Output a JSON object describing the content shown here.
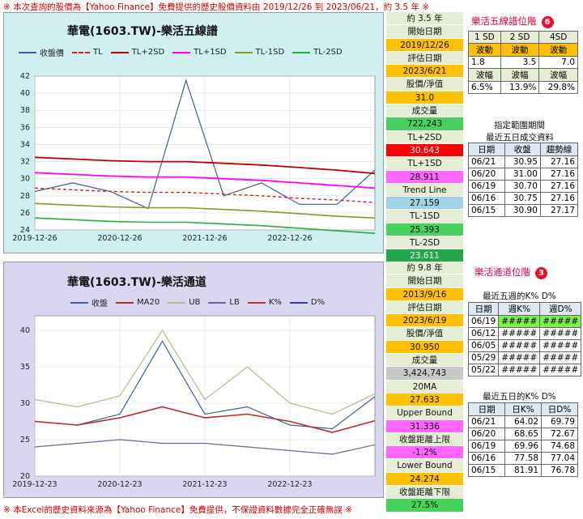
{
  "top_note": "※ 本次查詢的股價為【Yahoo Finance】免費提供的歷史股價資料由 2019/12/26 到 2023/06/21，約 3.5 年 ※",
  "bottom_note": "※ 本Excel的歷史資料來源為【Yahoo Finance】免費提供，不保證資料數據完全正確無誤 ※",
  "colors": {
    "close": "#3a5fa0",
    "tl": "#d42020",
    "tl_plus2": "#c00000",
    "tl_plus1": "#ff00ff",
    "tl_minus1": "#8a9a20",
    "tl_minus2": "#20b040",
    "ma20": "#c0282a",
    "ub": "#b8b890",
    "lb": "#7060a0",
    "k": "#c03030",
    "d": "#3040a0"
  },
  "chart1": {
    "title": "華電(1603.TW)-樂活五線譜",
    "legend": [
      "收盤價",
      "TL",
      "TL+2SD",
      "TL+1SD",
      "TL-1SD",
      "TL-2SD"
    ],
    "yticks": [
      "42",
      "40",
      "38",
      "36",
      "34",
      "32",
      "30",
      "28",
      "26",
      "24"
    ],
    "xticks": [
      "2019-12-26",
      "2020-12-26",
      "2021-12-26",
      "2022-12-26"
    ]
  },
  "chart2": {
    "title": "華電(1603.TW)-樂活通道",
    "legend": [
      "收盤",
      "MA20",
      "UB",
      "LB",
      "K%",
      "D%"
    ],
    "yticks": [
      "40",
      "35",
      "30",
      "25",
      "20"
    ],
    "xticks": [
      "2019-12-23",
      "2020-12-23",
      "2021-12-23",
      "2022-12-23"
    ]
  },
  "info1": [
    {
      "text": "約 3.5 年",
      "style": "hdr"
    },
    {
      "text": "開始日期",
      "style": "hdr"
    },
    {
      "text": "2019/12/26",
      "style": "yellow"
    },
    {
      "text": "評估日期",
      "style": "hdr"
    },
    {
      "text": "2023/6/21",
      "style": "yellow"
    },
    {
      "text": "股價/淨值",
      "style": "hdr"
    },
    {
      "text": "31.0",
      "style": "yellow"
    },
    {
      "text": "成交量",
      "style": "hdr"
    },
    {
      "text": "722,243",
      "style": "lgreen"
    },
    {
      "text": "TL+2SD",
      "style": "hdr"
    },
    {
      "text": "30.643",
      "style": "red"
    },
    {
      "text": "TL+1SD",
      "style": "hdr"
    },
    {
      "text": "28.911",
      "style": "pink"
    },
    {
      "text": "Trend Line",
      "style": "hdr"
    },
    {
      "text": "27.159",
      "style": "lblue"
    },
    {
      "text": "TL-1SD",
      "style": "hdr"
    },
    {
      "text": "25.393",
      "style": "lgreen"
    },
    {
      "text": "TL-2SD",
      "style": "hdr"
    },
    {
      "text": "23.611",
      "style": "green"
    }
  ],
  "info2": [
    {
      "text": "約 9.8 年",
      "style": "hdr"
    },
    {
      "text": "開始日期",
      "style": "hdr"
    },
    {
      "text": "2013/9/16",
      "style": "yellow"
    },
    {
      "text": "評估日期",
      "style": "hdr"
    },
    {
      "text": "2023/6/19",
      "style": "yellow"
    },
    {
      "text": "股價/淨值",
      "style": "hdr"
    },
    {
      "text": "30.950",
      "style": "yellow"
    },
    {
      "text": "成交量",
      "style": "hdr"
    },
    {
      "text": "3,424,743",
      "style": "gray"
    },
    {
      "text": "20MA",
      "style": "hdr"
    },
    {
      "text": "27.633",
      "style": "yellow"
    },
    {
      "text": "Upper Bound",
      "style": "hdr"
    },
    {
      "text": "31.336",
      "style": "pink"
    },
    {
      "text": "收盤距離上限",
      "style": "hdr"
    },
    {
      "text": "-1.2%",
      "style": "pink"
    },
    {
      "text": "Lower Bound",
      "style": "hdr"
    },
    {
      "text": "24.274",
      "style": "yellow"
    },
    {
      "text": "收盤距離下限",
      "style": "hdr"
    },
    {
      "text": "27.5%",
      "style": "lgreen"
    }
  ],
  "side1": {
    "title": "樂活五線譜位階",
    "badge": "6",
    "sd_headers": [
      "1 SD",
      "2 SD",
      "4SD"
    ],
    "row_label1": [
      "波動",
      "波動",
      "波動"
    ],
    "row_vals1": [
      "1.8",
      "3.5",
      "7.0"
    ],
    "row_label2": [
      "波幅",
      "波幅",
      "波幅"
    ],
    "row_vals2": [
      "6.5%",
      "13.9%",
      "29.8%"
    ],
    "sub_title_1": "指定範圍期間",
    "sub_title_2": "最近五日成交資料",
    "table_headers": [
      "日期",
      "收盤",
      "趨勢線"
    ],
    "rows": [
      [
        "06/21",
        "30.95",
        "27.16"
      ],
      [
        "06/20",
        "31.00",
        "27.16"
      ],
      [
        "06/19",
        "30.70",
        "27.16"
      ],
      [
        "06/16",
        "30.75",
        "27.16"
      ],
      [
        "06/15",
        "30.90",
        "27.17"
      ]
    ]
  },
  "side2": {
    "title": "樂活通道位階",
    "badge": "3",
    "sub_title_1": "最近五週的K% D%",
    "week_headers": [
      "日期",
      "週K%",
      "週D%"
    ],
    "week_rows": [
      [
        "06/19",
        "#####",
        "#####"
      ],
      [
        "06/12",
        "#####",
        "#####"
      ],
      [
        "06/05",
        "#####",
        "#####"
      ],
      [
        "05/29",
        "#####",
        "#####"
      ],
      [
        "05/22",
        "#####",
        "#####"
      ]
    ],
    "sub_title_2": "最近五日的K% D%",
    "day_headers": [
      "日期",
      "日K%",
      "日D%"
    ],
    "day_rows": [
      [
        "06/21",
        "64.02",
        "69.79"
      ],
      [
        "06/20",
        "68.65",
        "72.67"
      ],
      [
        "06/19",
        "69.96",
        "74.68"
      ],
      [
        "06/16",
        "77.58",
        "77.04"
      ],
      [
        "06/15",
        "81.91",
        "76.78"
      ]
    ]
  },
  "chart_data": [
    {
      "type": "line",
      "title": "華電(1603.TW)-樂活五線譜",
      "x": [
        "2019-12-26",
        "2020-06-26",
        "2020-12-26",
        "2021-03-01",
        "2021-03-20",
        "2021-06-26",
        "2021-12-26",
        "2022-06-26",
        "2022-12-26",
        "2023-06-21"
      ],
      "ylim": [
        24,
        42
      ],
      "series": [
        {
          "name": "收盤價",
          "values": [
            28.5,
            29.5,
            28.5,
            26.5,
            41.5,
            28.0,
            29.5,
            27.0,
            27.0,
            31.0
          ]
        },
        {
          "name": "TL",
          "values": [
            28.9,
            28.7,
            28.5,
            28.4,
            28.4,
            28.2,
            28.0,
            27.7,
            27.5,
            27.2
          ]
        },
        {
          "name": "TL+2SD",
          "values": [
            32.5,
            32.3,
            32.1,
            32.0,
            32.0,
            31.8,
            31.6,
            31.3,
            31.0,
            30.6
          ]
        },
        {
          "name": "TL+1SD",
          "values": [
            30.7,
            30.5,
            30.3,
            30.2,
            30.2,
            30.0,
            29.8,
            29.5,
            29.2,
            28.9
          ]
        },
        {
          "name": "TL-1SD",
          "values": [
            27.1,
            26.9,
            26.7,
            26.6,
            26.6,
            26.4,
            26.2,
            25.9,
            25.6,
            25.4
          ]
        },
        {
          "name": "TL-2SD",
          "values": [
            25.4,
            25.2,
            25.0,
            24.9,
            24.9,
            24.7,
            24.5,
            24.2,
            23.9,
            23.6
          ]
        }
      ]
    },
    {
      "type": "line",
      "title": "華電(1603.TW)-樂活通道",
      "x": [
        "2019-12-23",
        "2020-06-23",
        "2020-12-23",
        "2021-03-15",
        "2021-06-23",
        "2021-12-23",
        "2022-06-23",
        "2022-12-23",
        "2023-06-19"
      ],
      "ylim": [
        20,
        42
      ],
      "series": [
        {
          "name": "收盤",
          "values": [
            27.5,
            27.0,
            28.5,
            38.5,
            28.5,
            29.5,
            27.0,
            26.5,
            30.9
          ]
        },
        {
          "name": "MA20",
          "values": [
            27.5,
            27.0,
            28.0,
            29.5,
            28.0,
            28.5,
            27.5,
            26.0,
            27.6
          ]
        },
        {
          "name": "UB",
          "values": [
            30.5,
            29.5,
            31.0,
            40.0,
            30.5,
            35.0,
            30.0,
            28.5,
            31.3
          ]
        },
        {
          "name": "LB",
          "values": [
            24.0,
            24.5,
            25.0,
            24.5,
            24.5,
            24.0,
            23.5,
            23.0,
            24.3
          ]
        }
      ]
    }
  ]
}
